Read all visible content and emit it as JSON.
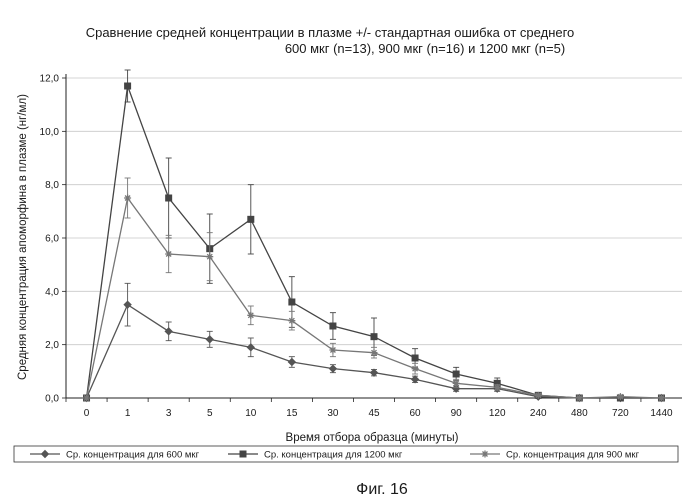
{
  "chart_data": {
    "type": "line",
    "title_lines": [
      "Сравнение средней концентрации в плазме +/-  стандартная  ошибка от среднего",
      "600 мкг (n=13), 900 мкг (n=16)  и 1200 мкг  (n=5)"
    ],
    "xlabel": "Время отбора образца (минуты)",
    "ylabel": "Средняя концентрация апоморфина в плазме (нг/мл)",
    "categories": [
      "0",
      "1",
      "3",
      "5",
      "10",
      "15",
      "30",
      "45",
      "60",
      "90",
      "120",
      "240",
      "480",
      "720",
      "1440"
    ],
    "yticks": [
      "0,0",
      "2,0",
      "4,0",
      "6,0",
      "8,0",
      "10,0",
      "12,0"
    ],
    "ylim": [
      0,
      12
    ],
    "grid": "horizontal",
    "legend_position": "bottom",
    "series": [
      {
        "name": "Ср. концентрация для 600 мкг",
        "marker": "diamond",
        "color": "#555555",
        "values": [
          0,
          3.5,
          2.5,
          2.2,
          1.9,
          1.35,
          1.1,
          0.95,
          0.7,
          0.35,
          0.35,
          0.05,
          0.0,
          0.0,
          0.0
        ],
        "errors": [
          0,
          0.8,
          0.35,
          0.3,
          0.35,
          0.2,
          0.15,
          0.12,
          0.12,
          0.1,
          0.1,
          0.03,
          0.02,
          0.02,
          0.02
        ]
      },
      {
        "name": "Ср. концентрация для 1200 мкг",
        "marker": "square",
        "color": "#444444",
        "values": [
          0,
          11.7,
          7.5,
          5.6,
          6.7,
          3.6,
          2.7,
          2.3,
          1.5,
          0.9,
          0.55,
          0.1,
          0.0,
          0.0,
          0.0
        ],
        "errors": [
          0,
          0.6,
          1.5,
          1.3,
          1.3,
          0.95,
          0.5,
          0.7,
          0.35,
          0.25,
          0.2,
          0.1,
          0.05,
          0.1,
          0.03
        ]
      },
      {
        "name": "Ср. концентрация для 900 мкг",
        "marker": "star",
        "color": "#777777",
        "values": [
          0,
          7.5,
          5.4,
          5.3,
          3.1,
          2.9,
          1.8,
          1.7,
          1.1,
          0.55,
          0.4,
          0.1,
          0.0,
          0.05,
          0.0
        ],
        "errors": [
          0,
          0.75,
          0.7,
          0.9,
          0.35,
          0.35,
          0.25,
          0.2,
          0.2,
          0.15,
          0.1,
          0.05,
          0.03,
          0.05,
          0.02
        ]
      }
    ]
  },
  "caption": "Фиг. 16"
}
